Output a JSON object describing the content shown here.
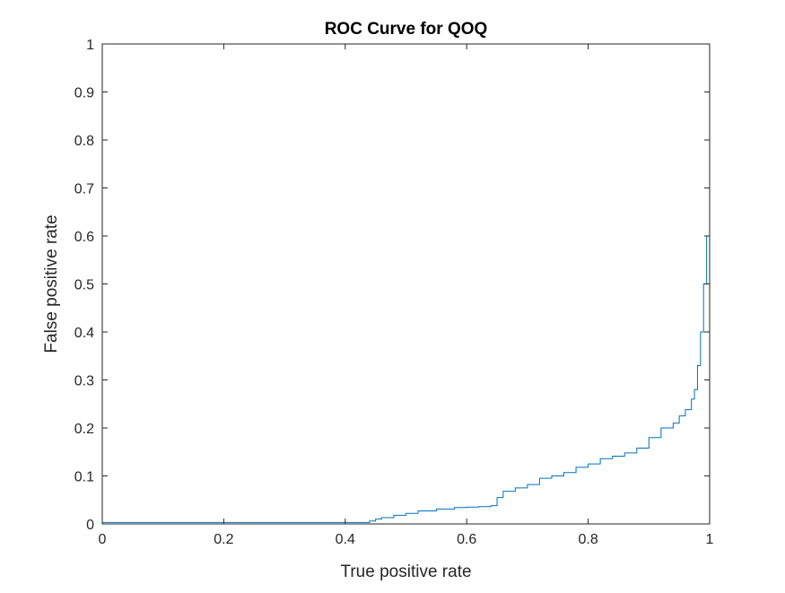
{
  "chart_data": {
    "type": "line",
    "title": "ROC Curve for QOQ",
    "xlabel": "True positive rate",
    "ylabel": "False positive rate",
    "xlim": [
      0,
      1
    ],
    "ylim": [
      0,
      1
    ],
    "grid": false,
    "xticks": [
      "0",
      "0.2",
      "0.4",
      "0.6",
      "0.8",
      "1"
    ],
    "yticks": [
      "0",
      "0.1",
      "0.2",
      "0.3",
      "0.4",
      "0.5",
      "0.6",
      "0.7",
      "0.8",
      "0.9",
      "1"
    ],
    "series": [
      {
        "color": "#0072BD",
        "x": [
          0,
          0.2,
          0.4,
          0.42,
          0.44,
          0.45,
          0.46,
          0.48,
          0.5,
          0.52,
          0.55,
          0.58,
          0.6,
          0.62,
          0.64,
          0.65,
          0.66,
          0.68,
          0.7,
          0.72,
          0.74,
          0.76,
          0.78,
          0.8,
          0.82,
          0.84,
          0.86,
          0.88,
          0.9,
          0.92,
          0.94,
          0.95,
          0.96,
          0.97,
          0.975,
          0.98,
          0.985,
          0.99,
          0.995,
          1.0,
          1.0
        ],
        "y": [
          0.003,
          0.003,
          0.003,
          0.003,
          0.006,
          0.01,
          0.013,
          0.018,
          0.022,
          0.027,
          0.031,
          0.034,
          0.035,
          0.036,
          0.038,
          0.055,
          0.068,
          0.075,
          0.082,
          0.095,
          0.1,
          0.107,
          0.118,
          0.125,
          0.136,
          0.141,
          0.148,
          0.158,
          0.18,
          0.2,
          0.21,
          0.225,
          0.238,
          0.26,
          0.28,
          0.33,
          0.4,
          0.5,
          0.6,
          0.68,
          1.0
        ]
      }
    ]
  }
}
